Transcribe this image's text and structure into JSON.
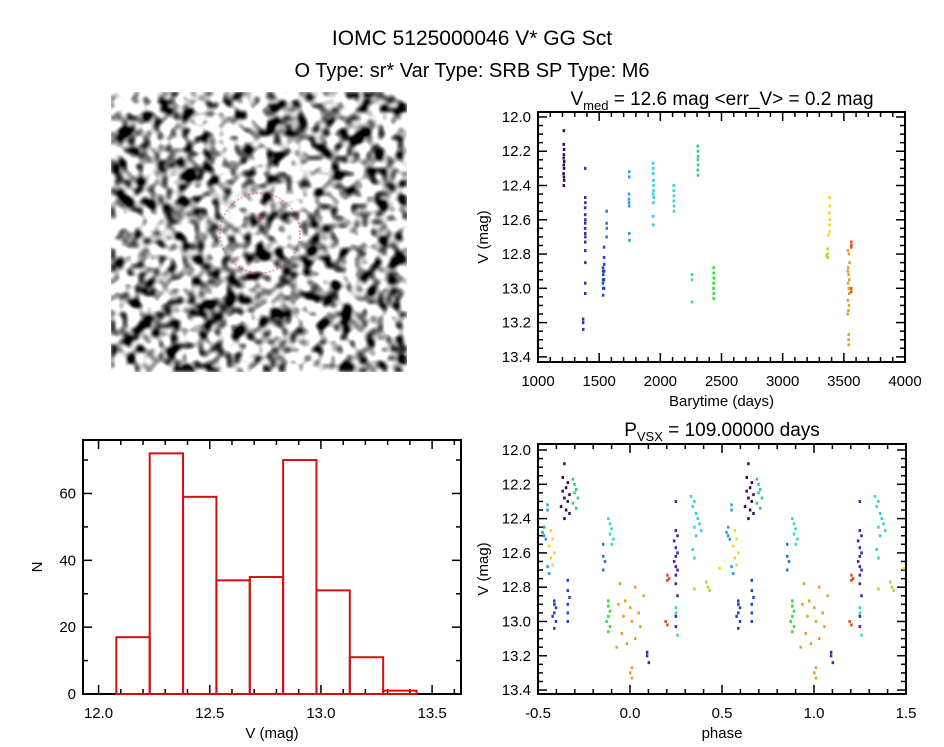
{
  "header": {
    "title": "IOMC 5125000046   V* GG Sct",
    "subtitle": "O Type: sr*  Var Type: SRB  SP Type: M6"
  },
  "finder_image": {
    "description_labels": [],
    "marker_color": "#c03040"
  },
  "chart_data": [
    {
      "id": "histogram",
      "type": "bar",
      "title": "",
      "xlabel": "V (mag)",
      "ylabel": "N",
      "xlim": [
        11.93,
        13.63
      ],
      "ylim": [
        0,
        76
      ],
      "xticks": [
        "12.0",
        "12.5",
        "13.0",
        "13.5"
      ],
      "yticks": [
        "0",
        "20",
        "40",
        "60"
      ],
      "bin_edges": [
        12.08,
        12.23,
        12.38,
        12.53,
        12.68,
        12.83,
        12.98,
        13.13,
        13.28,
        13.43
      ],
      "values": [
        17,
        72,
        59,
        34,
        35,
        70,
        31,
        11,
        1
      ],
      "color": "#d01010"
    },
    {
      "id": "lightcurve",
      "type": "scatter",
      "title_main": "V",
      "title_sub": "med",
      "title_rest": " = 12.6 mag <err_V> = 0.2 mag",
      "xlabel": "Barytime (days)",
      "ylabel": "V (mag)",
      "xlim": [
        1000,
        4000
      ],
      "ylim": [
        11.971,
        13.43
      ],
      "inverted_y": true,
      "xticks": [
        "1000",
        "1500",
        "2000",
        "2500",
        "3000",
        "3500",
        "4000"
      ],
      "yticks": [
        "12.0",
        "12.2",
        "12.4",
        "12.6",
        "12.8",
        "13.0",
        "13.2",
        "13.4"
      ]
    },
    {
      "id": "phased",
      "type": "scatter",
      "title_main": "P",
      "title_sub": "VSX",
      "title_rest": " = 109.00000 days",
      "period": 109.0,
      "epoch": 1139,
      "xlabel": "phase",
      "ylabel": "V (mag)",
      "xlim": [
        -0.5,
        1.5
      ],
      "ylim": [
        11.965,
        13.423
      ],
      "inverted_y": true,
      "xticks": [
        "-0.5",
        "0.0",
        "0.5",
        "1.0",
        "1.5"
      ],
      "yticks": [
        "12.0",
        "12.2",
        "12.4",
        "12.6",
        "12.8",
        "13.0",
        "13.2",
        "13.4"
      ]
    }
  ],
  "series": [
    {
      "color": "#3a0a5a",
      "points": [
        [
          1209,
          12.08
        ],
        [
          1208,
          12.16
        ],
        [
          1211,
          12.19
        ],
        [
          1210,
          12.22
        ],
        [
          1208,
          12.24
        ],
        [
          1212,
          12.26
        ],
        [
          1209,
          12.28
        ],
        [
          1211,
          12.3
        ],
        [
          1207,
          12.33
        ],
        [
          1210,
          12.35
        ],
        [
          1212,
          12.37
        ],
        [
          1209,
          12.4
        ]
      ]
    },
    {
      "color": "#4a20a8",
      "points": [
        [
          1384,
          12.3
        ],
        [
          1384,
          12.47
        ],
        [
          1385,
          12.5
        ],
        [
          1383,
          12.53
        ],
        [
          1384,
          12.57
        ],
        [
          1385,
          12.6
        ],
        [
          1384,
          12.62
        ],
        [
          1383,
          12.65
        ],
        [
          1384,
          12.68
        ],
        [
          1385,
          12.7
        ],
        [
          1384,
          12.73
        ],
        [
          1384,
          12.78
        ],
        [
          1385,
          12.85
        ],
        [
          1384,
          12.97
        ],
        [
          1384,
          13.03
        ],
        [
          1367,
          13.18
        ],
        [
          1367,
          13.2
        ],
        [
          1368,
          13.24
        ]
      ]
    },
    {
      "color": "#2040d0",
      "points": [
        [
          1530,
          12.88
        ],
        [
          1530,
          12.9
        ],
        [
          1531,
          12.92
        ],
        [
          1530,
          12.95
        ],
        [
          1529,
          12.97
        ],
        [
          1531,
          13.0
        ],
        [
          1530,
          13.04
        ],
        [
          1538,
          12.76
        ],
        [
          1538,
          12.82
        ],
        [
          1539,
          12.86
        ],
        [
          1538,
          12.9
        ],
        [
          1538,
          12.95
        ],
        [
          1538,
          13.0
        ]
      ]
    },
    {
      "color": "#2c78c8",
      "points": [
        [
          1559,
          12.55
        ],
        [
          1559,
          12.62
        ],
        [
          1560,
          12.65
        ],
        [
          1559,
          12.7
        ]
      ]
    },
    {
      "color": "#28a0d8",
      "points": [
        [
          1742,
          12.45
        ],
        [
          1741,
          12.48
        ],
        [
          1742,
          12.5
        ],
        [
          1743,
          12.52
        ],
        [
          1744,
          12.32
        ],
        [
          1744,
          12.35
        ],
        [
          1744,
          12.68
        ],
        [
          1745,
          12.72
        ]
      ]
    },
    {
      "color": "#30d0e8",
      "points": [
        [
          1938,
          12.27
        ],
        [
          1940,
          12.3
        ],
        [
          1939,
          12.33
        ],
        [
          1941,
          12.37
        ],
        [
          1942,
          12.4
        ],
        [
          1943,
          12.43
        ],
        [
          1940,
          12.45
        ],
        [
          1944,
          12.47
        ],
        [
          1941,
          12.5
        ],
        [
          1939,
          12.58
        ],
        [
          1940,
          12.63
        ]
      ]
    },
    {
      "color": "#38d8c8",
      "points": [
        [
          2107,
          12.4
        ],
        [
          2108,
          12.43
        ],
        [
          2109,
          12.46
        ],
        [
          2108,
          12.49
        ],
        [
          2110,
          12.52
        ],
        [
          2109,
          12.55
        ]
      ]
    },
    {
      "color": "#40d8b0",
      "points": [
        [
          2256,
          12.92
        ],
        [
          2256,
          12.95
        ],
        [
          2257,
          13.08
        ]
      ]
    },
    {
      "color": "#30d080",
      "points": [
        [
          2304,
          12.17
        ],
        [
          2305,
          12.2
        ],
        [
          2306,
          12.23
        ],
        [
          2305,
          12.25
        ],
        [
          2307,
          12.28
        ],
        [
          2304,
          12.31
        ],
        [
          2306,
          12.34
        ]
      ]
    },
    {
      "color": "#30e030",
      "points": [
        [
          2434,
          12.88
        ],
        [
          2434,
          12.91
        ],
        [
          2435,
          12.94
        ],
        [
          2434,
          12.97
        ],
        [
          2433,
          13.0
        ],
        [
          2435,
          13.03
        ],
        [
          2434,
          13.06
        ]
      ]
    },
    {
      "color": "#a0e030",
      "points": [
        [
          3364,
          12.77
        ],
        [
          3365,
          12.8
        ],
        [
          3366,
          12.82
        ],
        [
          3357,
          12.81
        ]
      ]
    },
    {
      "color": "#f0d820",
      "points": [
        [
          3381,
          12.47
        ],
        [
          3382,
          12.52
        ],
        [
          3380,
          12.56
        ],
        [
          3383,
          12.6
        ],
        [
          3381,
          12.63
        ],
        [
          3382,
          12.67
        ],
        [
          3372,
          12.69
        ]
      ]
    },
    {
      "color": "#e8a028",
      "points": [
        [
          3531,
          12.78
        ],
        [
          3540,
          12.8
        ],
        [
          3545,
          12.85
        ],
        [
          3534,
          12.88
        ],
        [
          3530,
          12.9
        ],
        [
          3537,
          12.92
        ],
        [
          3542,
          12.95
        ],
        [
          3533,
          12.97
        ],
        [
          3538,
          13.0
        ],
        [
          3543,
          13.03
        ],
        [
          3532,
          13.07
        ],
        [
          3540,
          13.1
        ],
        [
          3535,
          13.13
        ],
        [
          3529,
          13.15
        ],
        [
          3538,
          13.27
        ],
        [
          3537,
          13.3
        ],
        [
          3538,
          13.33
        ]
      ]
    },
    {
      "color": "#e05020",
      "points": [
        [
          3559,
          12.73
        ],
        [
          3560,
          12.75
        ],
        [
          3559,
          12.76
        ],
        [
          3558,
          13.0
        ],
        [
          3559,
          13.02
        ]
      ]
    }
  ]
}
